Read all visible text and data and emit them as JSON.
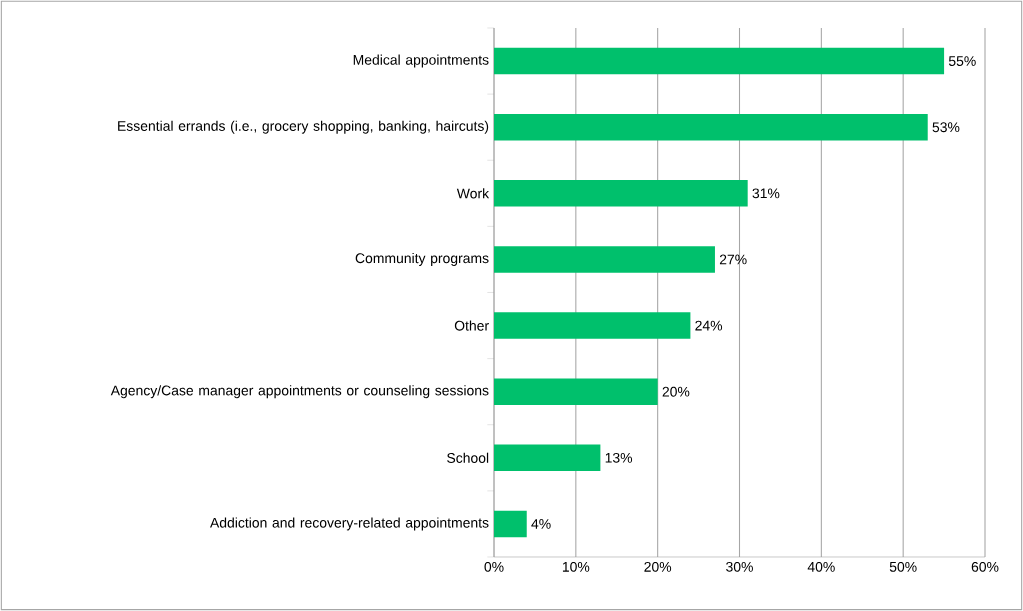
{
  "chart_data": {
    "type": "bar",
    "orientation": "horizontal",
    "categories": [
      "Medical appointments",
      "Essential errands (i.e., grocery shopping, banking, haircuts)",
      "Work",
      "Community programs",
      "Other",
      "Agency/Case manager appointments or counseling sessions",
      "School",
      "Addiction and recovery-related appointments"
    ],
    "values": [
      55,
      53,
      31,
      27,
      24,
      20,
      13,
      4
    ],
    "value_labels": [
      "55%",
      "53%",
      "31%",
      "27%",
      "24%",
      "20%",
      "13%",
      "4%"
    ],
    "color": "#00c06c",
    "xlim": [
      0,
      60
    ],
    "xticks": [
      {
        "value": 0,
        "label": "0%"
      },
      {
        "value": 10,
        "label": "10%"
      },
      {
        "value": 20,
        "label": "20%"
      },
      {
        "value": 30,
        "label": "30%"
      },
      {
        "value": 40,
        "label": "40%"
      },
      {
        "value": 50,
        "label": "50%"
      },
      {
        "value": 60,
        "label": "60%"
      }
    ],
    "grid": "x"
  }
}
